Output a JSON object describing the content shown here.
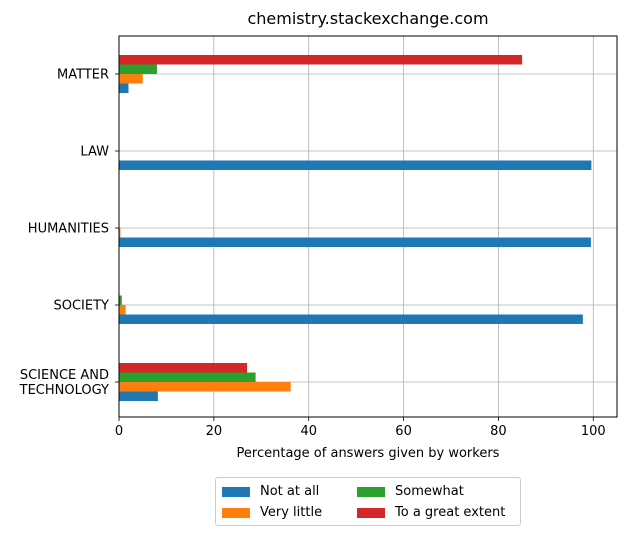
{
  "chart_data": {
    "type": "bar",
    "orientation": "horizontal",
    "title": "chemistry.stackexchange.com",
    "xlabel": "Percentage of answers given by workers",
    "ylabel": "",
    "xlim": [
      0,
      105
    ],
    "xticks": [
      0,
      20,
      40,
      60,
      80,
      100
    ],
    "grid": true,
    "legend_position": "bottom-center",
    "categories": [
      "MATTER",
      "LAW",
      "HUMANITIES",
      "SOCIETY",
      "SCIENCE AND\nTECHNOLOGY"
    ],
    "series": [
      {
        "name": "Not at all",
        "color": "#1f77b4",
        "values": [
          2,
          99.6,
          99.5,
          97.8,
          8.2
        ]
      },
      {
        "name": "Very little",
        "color": "#ff7f0e",
        "values": [
          5,
          0,
          0.3,
          1.4,
          36.2
        ]
      },
      {
        "name": "Somewhat",
        "color": "#2ca02c",
        "values": [
          8,
          0,
          0,
          0.6,
          28.8
        ]
      },
      {
        "name": "To a great extent",
        "color": "#d62728",
        "values": [
          85,
          0,
          0,
          0,
          27
        ]
      }
    ]
  }
}
